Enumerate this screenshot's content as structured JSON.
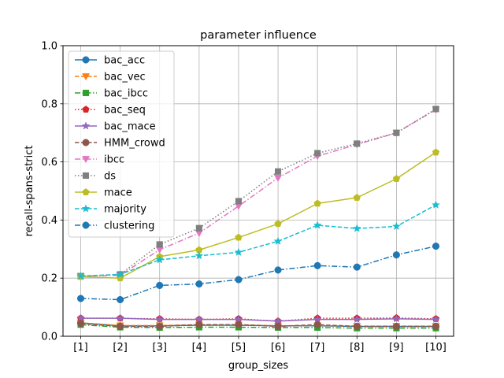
{
  "chart_data": {
    "type": "line",
    "title": "parameter influence",
    "xlabel": "group_sizes",
    "ylabel": "recall-spans-strict",
    "categories": [
      "[1]",
      "[2]",
      "[3]",
      "[4]",
      "[5]",
      "[6]",
      "[7]",
      "[8]",
      "[9]",
      "[10]"
    ],
    "ylim": [
      0.0,
      1.0
    ],
    "yticks": [
      "0.0",
      "0.2",
      "0.4",
      "0.6",
      "0.8",
      "1.0"
    ],
    "grid": true,
    "legend_position": "upper-left",
    "series": [
      {
        "name": "bac_acc",
        "color": "#1f77b4",
        "marker": "circle",
        "dash": "solid",
        "values": [
          0.046,
          0.036,
          0.036,
          0.038,
          0.038,
          0.036,
          0.036,
          0.034,
          0.034,
          0.034
        ]
      },
      {
        "name": "bac_vec",
        "color": "#ff7f0e",
        "marker": "triangle-down",
        "dash": "dashed",
        "values": [
          0.046,
          0.037,
          0.037,
          0.04,
          0.04,
          0.036,
          0.037,
          0.035,
          0.035,
          0.035
        ]
      },
      {
        "name": "bac_ibcc",
        "color": "#2ca02c",
        "marker": "square",
        "dash": "dashdot",
        "values": [
          0.04,
          0.031,
          0.03,
          0.031,
          0.031,
          0.03,
          0.03,
          0.028,
          0.028,
          0.028
        ]
      },
      {
        "name": "bac_seq",
        "color": "#d62728",
        "marker": "pentagon",
        "dash": "dotted",
        "values": [
          0.062,
          0.062,
          0.06,
          0.058,
          0.06,
          0.052,
          0.062,
          0.062,
          0.063,
          0.06
        ]
      },
      {
        "name": "bac_mace",
        "color": "#9467bd",
        "marker": "star",
        "dash": "solid",
        "values": [
          0.062,
          0.062,
          0.058,
          0.058,
          0.058,
          0.052,
          0.058,
          0.058,
          0.06,
          0.058
        ]
      },
      {
        "name": "HMM_crowd",
        "color": "#8c564b",
        "marker": "circle",
        "dash": "dashed",
        "values": [
          0.044,
          0.034,
          0.034,
          0.04,
          0.04,
          0.034,
          0.04,
          0.034,
          0.034,
          0.034
        ]
      },
      {
        "name": "ibcc",
        "color": "#e377c2",
        "marker": "triangle-down",
        "dash": "dashdot",
        "values": [
          0.207,
          0.21,
          0.298,
          0.355,
          0.448,
          0.545,
          0.62,
          0.66,
          0.7,
          0.78
        ]
      },
      {
        "name": "ds",
        "color": "#7f7f7f",
        "marker": "square",
        "dash": "dotted",
        "values": [
          0.207,
          0.213,
          0.316,
          0.372,
          0.465,
          0.567,
          0.63,
          0.663,
          0.7,
          0.782
        ]
      },
      {
        "name": "mace",
        "color": "#bcbd22",
        "marker": "pentagon",
        "dash": "solid",
        "values": [
          0.205,
          0.2,
          0.274,
          0.297,
          0.34,
          0.387,
          0.457,
          0.477,
          0.542,
          0.633
        ]
      },
      {
        "name": "majority",
        "color": "#17becf",
        "marker": "star",
        "dash": "dashed",
        "values": [
          0.207,
          0.213,
          0.263,
          0.277,
          0.289,
          0.327,
          0.382,
          0.371,
          0.378,
          0.452
        ]
      },
      {
        "name": "clustering",
        "color": "#1f77b4",
        "marker": "circle",
        "dash": "dashdot",
        "values": [
          0.13,
          0.126,
          0.175,
          0.18,
          0.195,
          0.228,
          0.243,
          0.238,
          0.28,
          0.31
        ]
      }
    ]
  }
}
